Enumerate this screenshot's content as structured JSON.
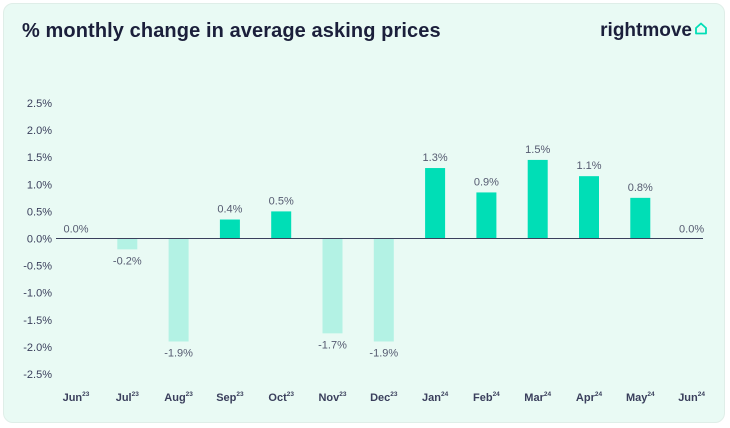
{
  "title": "% monthly change in average asking prices",
  "logo": {
    "text": "rightmove",
    "icon": "house-outline-icon"
  },
  "colors": {
    "background": "#e9faf4",
    "positive": "#00deb6",
    "negative": "#b3f2e4",
    "text": "#1b1f3b"
  },
  "chart_data": {
    "type": "bar",
    "title": "% monthly change in average asking prices",
    "xlabel": "",
    "ylabel": "",
    "ylim": [
      -2.5,
      2.5
    ],
    "yticks": [
      "2.5%",
      "2.0%",
      "1.5%",
      "1.0%",
      "0.5%",
      "0.0%",
      "-0.5%",
      "-1.0%",
      "-1.5%",
      "-2.0%",
      "-2.5%"
    ],
    "ytick_values": [
      2.5,
      2.0,
      1.5,
      1.0,
      0.5,
      0.0,
      -0.5,
      -1.0,
      -1.5,
      -2.0,
      -2.5
    ],
    "categories": [
      {
        "month": "Jun",
        "year": "23"
      },
      {
        "month": "Jul",
        "year": "23"
      },
      {
        "month": "Aug",
        "year": "23"
      },
      {
        "month": "Sep",
        "year": "23"
      },
      {
        "month": "Oct",
        "year": "23"
      },
      {
        "month": "Nov",
        "year": "23"
      },
      {
        "month": "Dec",
        "year": "23"
      },
      {
        "month": "Jan",
        "year": "24"
      },
      {
        "month": "Feb",
        "year": "24"
      },
      {
        "month": "Mar",
        "year": "24"
      },
      {
        "month": "Apr",
        "year": "24"
      },
      {
        "month": "May",
        "year": "24"
      },
      {
        "month": "Jun",
        "year": "24"
      }
    ],
    "values": [
      0.0,
      -0.2,
      -1.9,
      0.35,
      0.5,
      -1.75,
      -1.9,
      1.3,
      0.85,
      1.45,
      1.15,
      0.75,
      0.0
    ],
    "labels": [
      "0.0%",
      "-0.2%",
      "-1.9%",
      "0.4%",
      "0.5%",
      "-1.7%",
      "-1.9%",
      "1.3%",
      "0.9%",
      "1.5%",
      "1.1%",
      "0.8%",
      "0.0%"
    ],
    "grid": false,
    "legend": "none"
  }
}
